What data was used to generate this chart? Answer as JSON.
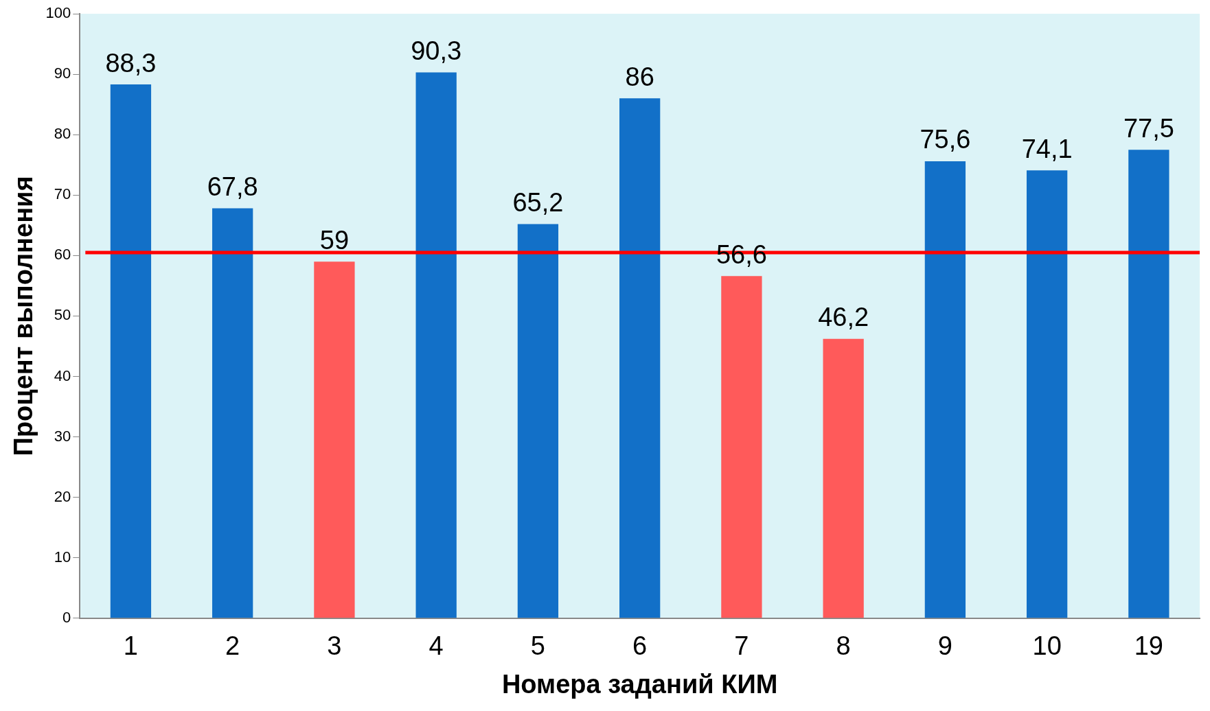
{
  "chart_data": {
    "type": "bar",
    "xlabel": "Номера заданий КИМ",
    "ylabel": "Процент выполнения",
    "categories": [
      "1",
      "2",
      "3",
      "4",
      "5",
      "6",
      "7",
      "8",
      "9",
      "10",
      "19"
    ],
    "values": [
      88.3,
      67.8,
      59,
      90.3,
      65.2,
      86,
      56.6,
      46.2,
      75.6,
      74.1,
      77.5
    ],
    "colors": [
      "#1270c8",
      "#1270c8",
      "#ff5a5a",
      "#1270c8",
      "#1270c8",
      "#1270c8",
      "#ff5a5a",
      "#ff5a5a",
      "#1270c8",
      "#1270c8",
      "#1270c8"
    ],
    "value_labels": [
      "88,3",
      "67,8",
      "59",
      "90,3",
      "65,2",
      "86",
      "56,6",
      "46,2",
      "75,6",
      "74,1",
      "77,5"
    ],
    "ylim": [
      0,
      100
    ],
    "yticks": [
      0,
      10,
      20,
      30,
      40,
      50,
      60,
      70,
      80,
      90,
      100
    ],
    "grid": false,
    "legend": false,
    "ref_lines": [
      {
        "axis": "y",
        "value": 60.5,
        "color": "#ff0000"
      }
    ]
  }
}
